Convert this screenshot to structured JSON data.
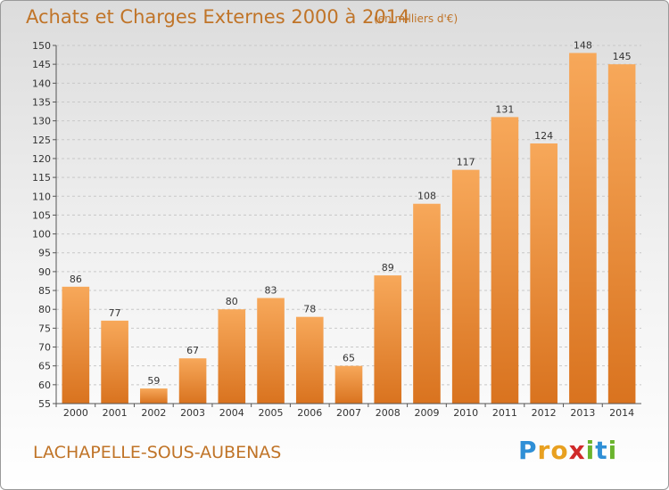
{
  "header": {
    "title": "Achats et Charges Externes 2000 à 2014",
    "subtitle": "(en milliers d'€)"
  },
  "footer": {
    "commune": "LACHAPELLE-SOUS-AUBENAS",
    "logo_text": "Proxiti"
  },
  "colors": {
    "bar_light": "#f7a85a",
    "bar_dark": "#d9731f",
    "title": "#c07428",
    "grid": "#c8c8c8"
  },
  "chart_data": {
    "type": "bar",
    "title": "Achats et Charges Externes 2000 à 2014",
    "subtitle": "(en milliers d'€)",
    "xlabel": "",
    "ylabel": "",
    "categories": [
      "2000",
      "2001",
      "2002",
      "2003",
      "2004",
      "2005",
      "2006",
      "2007",
      "2008",
      "2009",
      "2010",
      "2011",
      "2012",
      "2013",
      "2014"
    ],
    "values": [
      86,
      77,
      59,
      67,
      80,
      83,
      78,
      65,
      89,
      108,
      117,
      131,
      124,
      148,
      145
    ],
    "ylim": [
      55,
      150
    ],
    "yticks": [
      55,
      60,
      65,
      70,
      75,
      80,
      85,
      90,
      95,
      100,
      105,
      110,
      115,
      120,
      125,
      130,
      135,
      140,
      145,
      150
    ],
    "grid": true,
    "legend": "none"
  }
}
